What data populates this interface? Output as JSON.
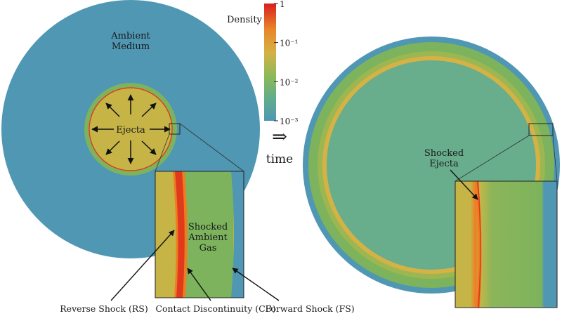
{
  "colors": {
    "ambient": "#4f97b3",
    "ejecta": "#c6b447",
    "shocked_ambient": "#7db35d",
    "shock_red": "#e03a1c",
    "shock_orange": "#ee7d22",
    "shell_yellow": "#d4b246",
    "interior": "#68ad8c"
  },
  "colorbar": {
    "title": "Density ρ",
    "ticks": [
      {
        "label": "1",
        "frac": 0.0
      },
      {
        "label": "10⁻¹",
        "frac": 0.333
      },
      {
        "label": "10⁻²",
        "frac": 0.667
      },
      {
        "label": "10⁻³",
        "frac": 1.0
      }
    ]
  },
  "time_arrow": {
    "symbol": "⇒",
    "label": "time"
  },
  "left": {
    "ambient_line1": "Ambient",
    "ambient_line2": "Medium",
    "ejecta": "Ejecta",
    "inset_line1": "Shocked",
    "inset_line2": "Ambient",
    "inset_line3": "Gas"
  },
  "right": {
    "line1": "Shocked",
    "line2": "Ejecta"
  },
  "callouts": {
    "rs": "Reverse Shock (RS)",
    "cd": "Contact Discontinuity (CD)",
    "fs": "Forward Shock (FS)"
  }
}
